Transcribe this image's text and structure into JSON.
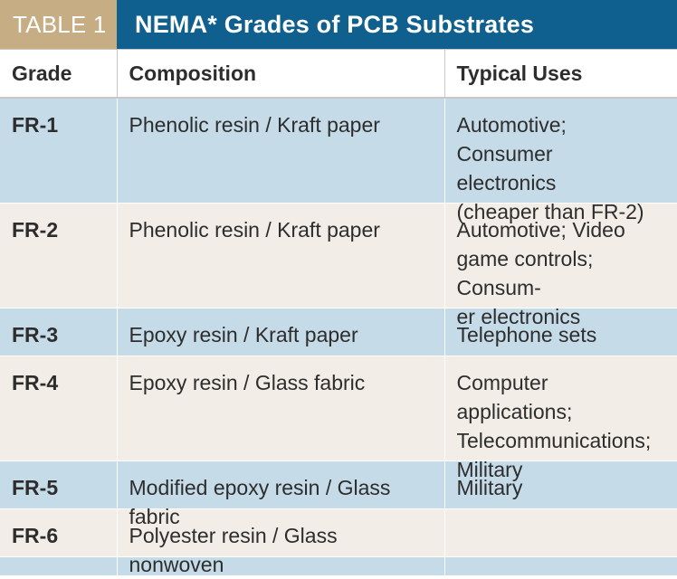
{
  "header": {
    "tag": "TABLE 1",
    "title": "NEMA* Grades of PCB Substrates"
  },
  "columns": [
    "Grade",
    "Composition",
    "Typical Uses"
  ],
  "rows": [
    {
      "grade": "FR-1",
      "composition": "Phenolic resin / Kraft paper",
      "uses": [
        "Automotive; Consumer",
        "electronics",
        "(cheaper than FR-2)"
      ]
    },
    {
      "grade": "FR-2",
      "composition": "Phenolic resin / Kraft paper",
      "uses": [
        "Automotive; Video",
        "game controls; Consum-",
        "er electronics"
      ]
    },
    {
      "grade": "FR-3",
      "composition": "Epoxy resin / Kraft paper",
      "uses": [
        "Telephone sets"
      ]
    },
    {
      "grade": "FR-4",
      "composition": "Epoxy resin / Glass fabric",
      "uses": [
        "Computer applications;",
        "Telecommunications;",
        "Military"
      ]
    },
    {
      "grade": "FR-5",
      "composition": "Modified epoxy resin / Glass fabric",
      "uses": [
        "Military"
      ]
    },
    {
      "grade": "FR-6",
      "composition": "Polyester resin / Glass nonwoven",
      "uses": []
    },
    {
      "grade": "",
      "composition": "",
      "uses": []
    }
  ],
  "colors": {
    "tag_bg": "#c7ad83",
    "title_bg": "#0f5f8f",
    "row_blue": "#c6dbe8",
    "row_beige": "#f2eee7"
  }
}
